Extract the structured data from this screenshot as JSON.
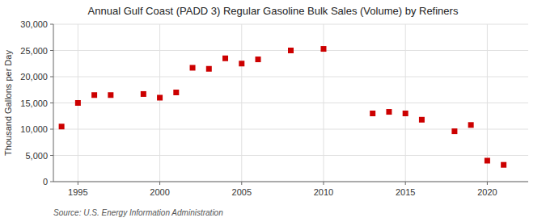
{
  "chart_data": {
    "type": "scatter",
    "title": "Annual Gulf Coast (PADD 3) Regular Gasoline Bulk Sales (Volume) by Refiners",
    "y_label": "Thousand Gallons per Day",
    "annotations": [
      "Source: U.S. Energy Information Administration"
    ],
    "x": [
      1994,
      1995,
      1996,
      1997,
      1999,
      2000,
      2001,
      2002,
      2003,
      2004,
      2005,
      2006,
      2008,
      2010,
      2013,
      2014,
      2015,
      2016,
      2018,
      2019,
      2020,
      2021
    ],
    "values": [
      10500,
      15000,
      16500,
      16500,
      16700,
      16000,
      17000,
      21700,
      21500,
      23500,
      22500,
      23300,
      25000,
      25300,
      13000,
      13300,
      13000,
      11800,
      9600,
      10800,
      4000,
      3200
    ],
    "color": "#cc0000",
    "marker": "square",
    "xlim": [
      1993.5,
      2022.5
    ],
    "ylim": [
      0,
      30000
    ],
    "xticks": [
      1995,
      2000,
      2005,
      2010,
      2015,
      2020
    ],
    "yticks": [
      0,
      {
        "value": 5000,
        "label": "5,000"
      },
      {
        "value": 10000,
        "label": "10,000"
      },
      {
        "value": 15000,
        "label": "15,000"
      },
      {
        "value": 20000,
        "label": "20,000"
      },
      {
        "value": 25000,
        "label": "25,000"
      },
      {
        "value": 30000,
        "label": "30,000"
      }
    ],
    "grid": true
  }
}
